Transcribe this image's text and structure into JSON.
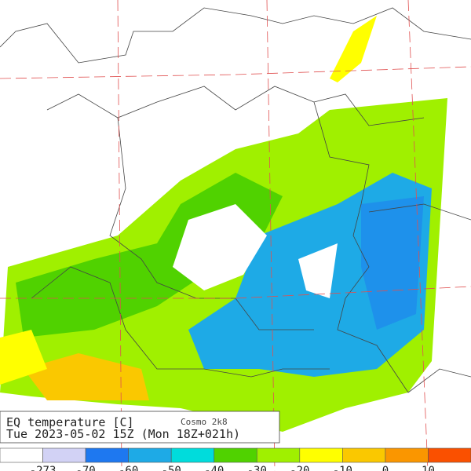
{
  "title": "EQ temperature [C]",
  "subtitle": "Tue 2023-05-02 15Z (Mon 18Z+021h)",
  "model": "Cosmo 2k8",
  "colorbar": {
    "colors": [
      "#ffffff",
      "#d2d2f5",
      "#1e78f0",
      "#1eaae6",
      "#00dcdc",
      "#50d200",
      "#a0f000",
      "#ffff00",
      "#fac800",
      "#fa9600",
      "#fa5000"
    ],
    "labels": [
      -273,
      -70,
      -60,
      -50,
      -40,
      -30,
      -20,
      -10,
      0,
      10
    ]
  }
}
